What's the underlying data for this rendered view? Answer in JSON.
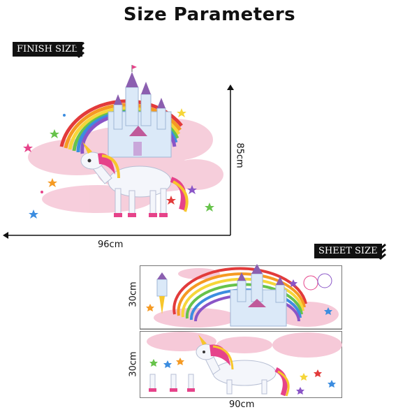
{
  "title": "Size Parameters",
  "finish": {
    "label": "FINISH SIZE",
    "width_label": "96cm",
    "height_label": "85cm"
  },
  "sheet": {
    "label": "SHEET SIZE",
    "width_label": "90cm",
    "row1_height_label": "30cm",
    "row2_height_label": "30cm"
  },
  "icons": [
    "chevron-down-icon",
    "castle-icon",
    "rainbow-icon",
    "unicorn-icon",
    "star-icon",
    "cloud-icon"
  ],
  "colors": {
    "tag_bg": "#111111",
    "cloud_pink": "#f6c9d8",
    "castle_blue": "#cfe3f5",
    "castle_roof": "#8b5fb0",
    "unicorn_body": "#f4f6fb",
    "mane_pink": "#e6438a",
    "mane_yellow": "#f7c62b"
  }
}
